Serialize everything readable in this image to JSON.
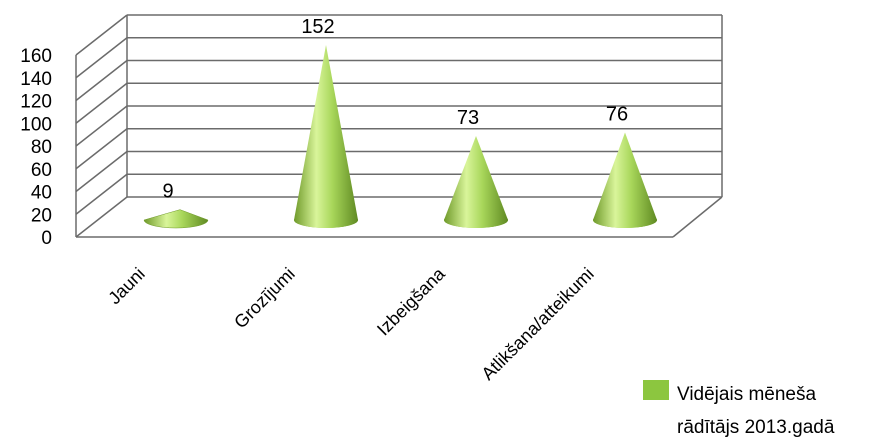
{
  "chart_data": {
    "type": "bar",
    "title": "",
    "xlabel": "",
    "ylabel": "",
    "categories": [
      "Jauni",
      "Grozījumi",
      "Izbeigšana",
      "Atlikšana/atteikumi"
    ],
    "series": [
      {
        "name": "Vidējais mēneša rādītājs 2013.gadā",
        "values": [
          9,
          152,
          73,
          76
        ]
      }
    ],
    "ylim": [
      0,
      160
    ],
    "yticks": [
      "0",
      "20",
      "40",
      "60",
      "80",
      "100",
      "120",
      "140",
      "160"
    ],
    "grid": true,
    "legend": "bottom-right",
    "style": "3d-cone",
    "color": "#8CC63F"
  },
  "legend": {
    "line1": "Vidējais mēneša",
    "line2": "rādītājs 2013.gadā"
  }
}
